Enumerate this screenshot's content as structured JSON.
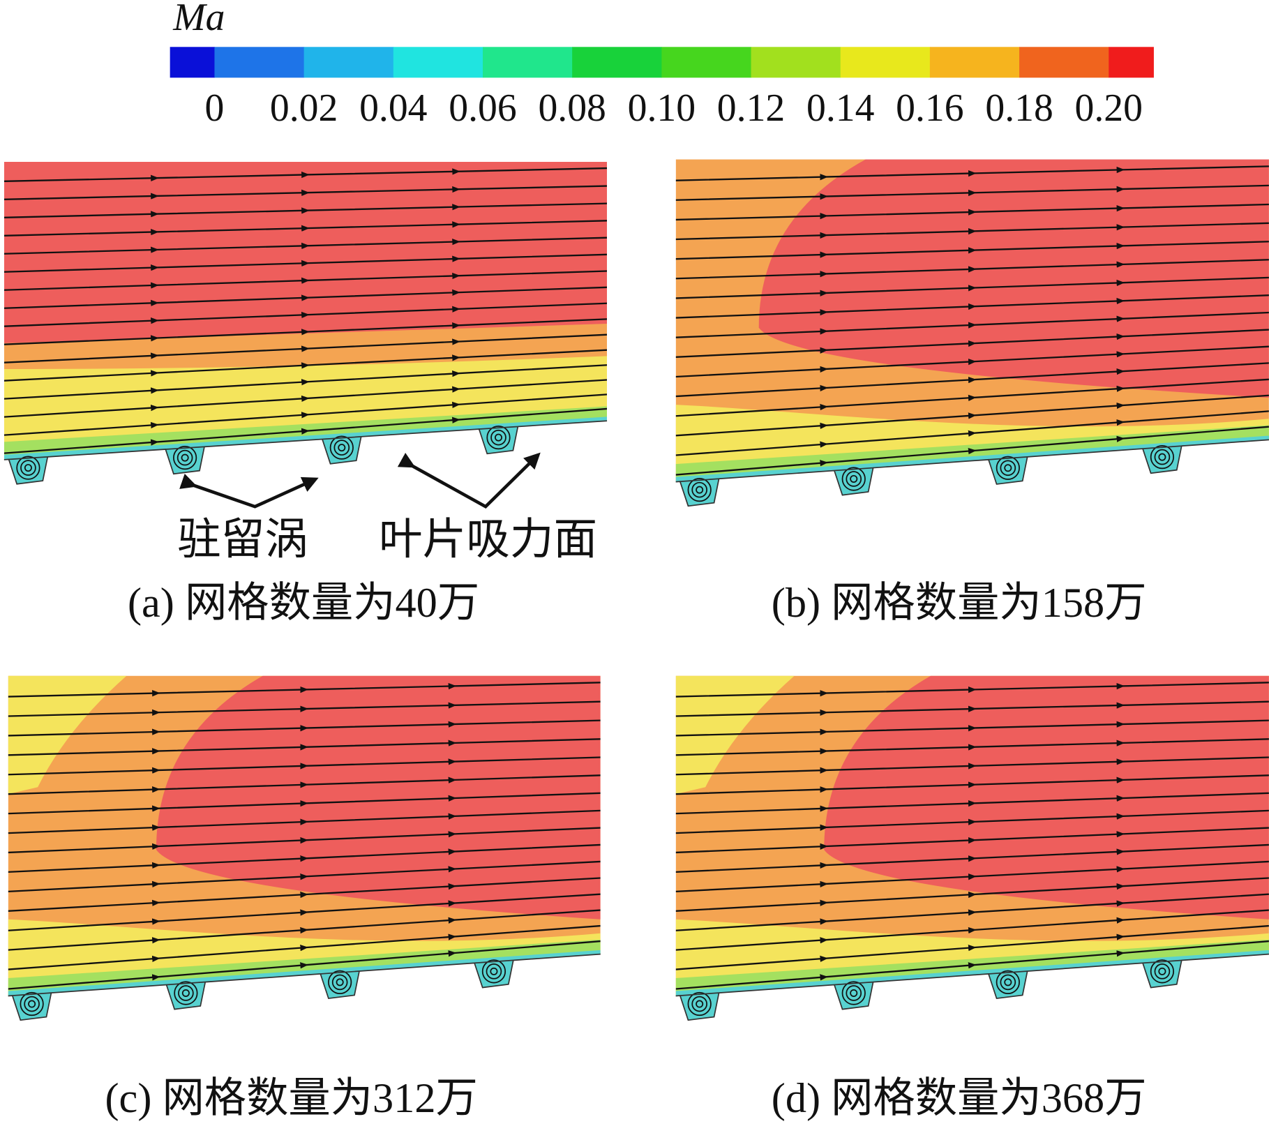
{
  "colorbar": {
    "title": "Ma",
    "colors": [
      "#0a10d8",
      "#1e74e8",
      "#20b4ea",
      "#20e4e0",
      "#20e68c",
      "#18d23a",
      "#46d61e",
      "#a2e01e",
      "#e8e81c",
      "#f6b41e",
      "#f0641e",
      "#f01c1c"
    ],
    "ticks": [
      "0",
      "0.02",
      "0.04",
      "0.06",
      "0.08",
      "0.10",
      "0.12",
      "0.14",
      "0.16",
      "0.18",
      "0.20"
    ]
  },
  "panels": [
    {
      "caption": "(a) 网格数量为40万",
      "annotations": [
        "驻留涡",
        "叶片吸力面"
      ]
    },
    {
      "caption": "(b) 网格数量为158万"
    },
    {
      "caption": "(c) 网格数量为312万"
    },
    {
      "caption": "(d) 网格数量为368万"
    }
  ]
}
